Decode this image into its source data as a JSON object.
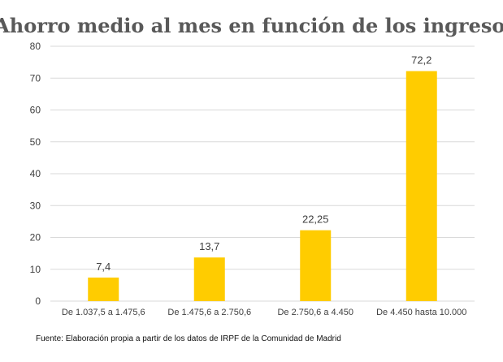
{
  "chart_data": {
    "type": "bar",
    "title": "Ahorro medio al mes en función de los ingresos",
    "categories": [
      "De 1.037,5 a 1.475,6",
      "De 1.475,6 a 2.750,6",
      "De 2.750,6 a 4.450",
      "De 4.450 hasta 10.000"
    ],
    "values": [
      7.4,
      13.7,
      22.25,
      72.2
    ],
    "data_labels": [
      "7,4",
      "13,7",
      "22,25",
      "72,2"
    ],
    "ylim": [
      0,
      80
    ],
    "yticks": [
      0,
      10,
      20,
      30,
      40,
      50,
      60,
      70,
      80
    ],
    "grid": true,
    "legend": "none",
    "bar_color": "#FFCC00",
    "grid_color": "#D9D9D9"
  },
  "source_note": "Fuente: Elaboración propia a partir de los datos de IRPF de la Comunidad de Madrid"
}
